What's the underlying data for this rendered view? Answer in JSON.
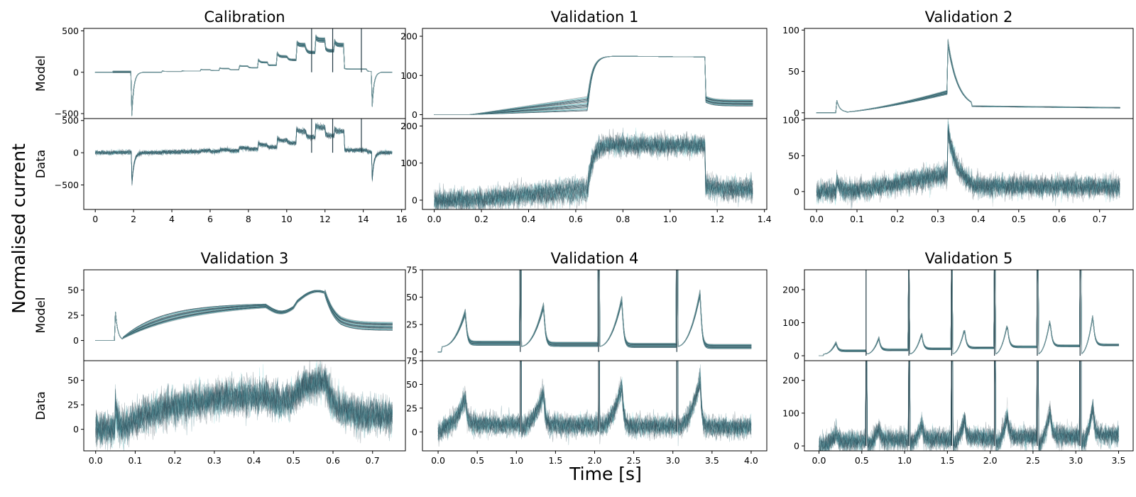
{
  "figure": {
    "ylabel": "Normalised current",
    "xlabel": "Time [s]",
    "row_labels": {
      "model": "Model",
      "data": "Data"
    },
    "colors": {
      "dark": "#233a44",
      "mid": "#2f6b78",
      "light": "#6ccfd2",
      "grey": "#8a9296"
    }
  },
  "chart_data": [
    {
      "type": "line",
      "title": "Calibration",
      "protocol": "calibration",
      "xlim": [
        -0.6,
        16.2
      ],
      "xticks": [
        "0",
        "2",
        "4",
        "6",
        "8",
        "10",
        "12",
        "14",
        "16"
      ],
      "xtick_values": [
        0,
        2,
        4,
        6,
        8,
        10,
        12,
        14,
        16
      ],
      "model": {
        "ylim": [
          -560,
          530
        ],
        "yticks": [
          "500",
          "0",
          "−500"
        ],
        "ytick_values": [
          500,
          0,
          -500
        ]
      },
      "data": {
        "ylim": [
          -880,
          530
        ],
        "yticks": [
          "500",
          "0",
          "−500"
        ],
        "ytick_values": [
          500,
          0,
          -500
        ]
      }
    },
    {
      "type": "line",
      "title": "Validation 1",
      "protocol": "v1",
      "xlim": [
        -0.05,
        1.41
      ],
      "xticks": [
        "0.0",
        "0.2",
        "0.4",
        "0.6",
        "0.8",
        "1.0",
        "1.2",
        "1.4"
      ],
      "xtick_values": [
        0,
        0.2,
        0.4,
        0.6,
        0.8,
        1.0,
        1.2,
        1.4
      ],
      "model": {
        "ylim": [
          -10,
          220
        ],
        "yticks": [
          "200",
          "100",
          "0"
        ],
        "ytick_values": [
          200,
          100,
          0
        ]
      },
      "data": {
        "ylim": [
          -25,
          220
        ],
        "yticks": [
          "200",
          "100",
          "0"
        ],
        "ytick_values": [
          200,
          100,
          0
        ]
      }
    },
    {
      "type": "line",
      "title": "Validation 2",
      "protocol": "v2",
      "xlim": [
        -0.03,
        0.783
      ],
      "xticks": [
        "0.0",
        "0.1",
        "0.2",
        "0.3",
        "0.4",
        "0.5",
        "0.6",
        "0.7"
      ],
      "xtick_values": [
        0,
        0.1,
        0.2,
        0.3,
        0.4,
        0.5,
        0.6,
        0.7
      ],
      "model": {
        "ylim": [
          -7,
          102
        ],
        "yticks": [
          "100",
          "50",
          "0"
        ],
        "ytick_values": [
          100,
          50,
          0
        ]
      },
      "data": {
        "ylim": [
          -25,
          102
        ],
        "yticks": [
          "100",
          "50",
          "0"
        ],
        "ytick_values": [
          100,
          50,
          0
        ]
      }
    },
    {
      "type": "line",
      "title": "Validation 3",
      "protocol": "v3",
      "xlim": [
        -0.03,
        0.783
      ],
      "xticks": [
        "0.0",
        "0.1",
        "0.2",
        "0.3",
        "0.4",
        "0.5",
        "0.6",
        "0.7"
      ],
      "xtick_values": [
        0,
        0.1,
        0.2,
        0.3,
        0.4,
        0.5,
        0.6,
        0.7
      ],
      "model": {
        "ylim": [
          -20,
          70
        ],
        "yticks": [
          "50",
          "25",
          "0"
        ],
        "ytick_values": [
          50,
          25,
          0
        ]
      },
      "data": {
        "ylim": [
          -22,
          70
        ],
        "yticks": [
          "50",
          "25",
          "0"
        ],
        "ytick_values": [
          50,
          25,
          0
        ]
      }
    },
    {
      "type": "line",
      "title": "Validation 4",
      "protocol": "v4",
      "xlim": [
        -0.2,
        4.2
      ],
      "xticks": [
        "0.0",
        "0.5",
        "1.0",
        "1.5",
        "2.0",
        "2.5",
        "3.0",
        "3.5",
        "4.0"
      ],
      "xtick_values": [
        0,
        0.5,
        1,
        1.5,
        2,
        2.5,
        3,
        3.5,
        4
      ],
      "model": {
        "ylim": [
          -8,
          75
        ],
        "yticks": [
          "75",
          "50",
          "25",
          "0"
        ],
        "ytick_values": [
          75,
          50,
          25,
          0
        ]
      },
      "data": {
        "ylim": [
          -20,
          75
        ],
        "yticks": [
          "75",
          "50",
          "25",
          "0"
        ],
        "ytick_values": [
          75,
          50,
          25,
          0
        ]
      }
    },
    {
      "type": "line",
      "title": "Validation 5",
      "protocol": "v5",
      "xlim": [
        -0.17,
        3.67
      ],
      "xticks": [
        "0.0",
        "0.5",
        "1.0",
        "1.5",
        "2.0",
        "2.5",
        "3.0",
        "3.5"
      ],
      "xtick_values": [
        0,
        0.5,
        1,
        1.5,
        2,
        2.5,
        3,
        3.5
      ],
      "model": {
        "ylim": [
          -15,
          260
        ],
        "yticks": [
          "200",
          "100",
          "0"
        ],
        "ytick_values": [
          200,
          100,
          0
        ]
      },
      "data": {
        "ylim": [
          -15,
          260
        ],
        "yticks": [
          "200",
          "100",
          "0"
        ],
        "ytick_values": [
          200,
          100,
          0
        ]
      }
    }
  ]
}
